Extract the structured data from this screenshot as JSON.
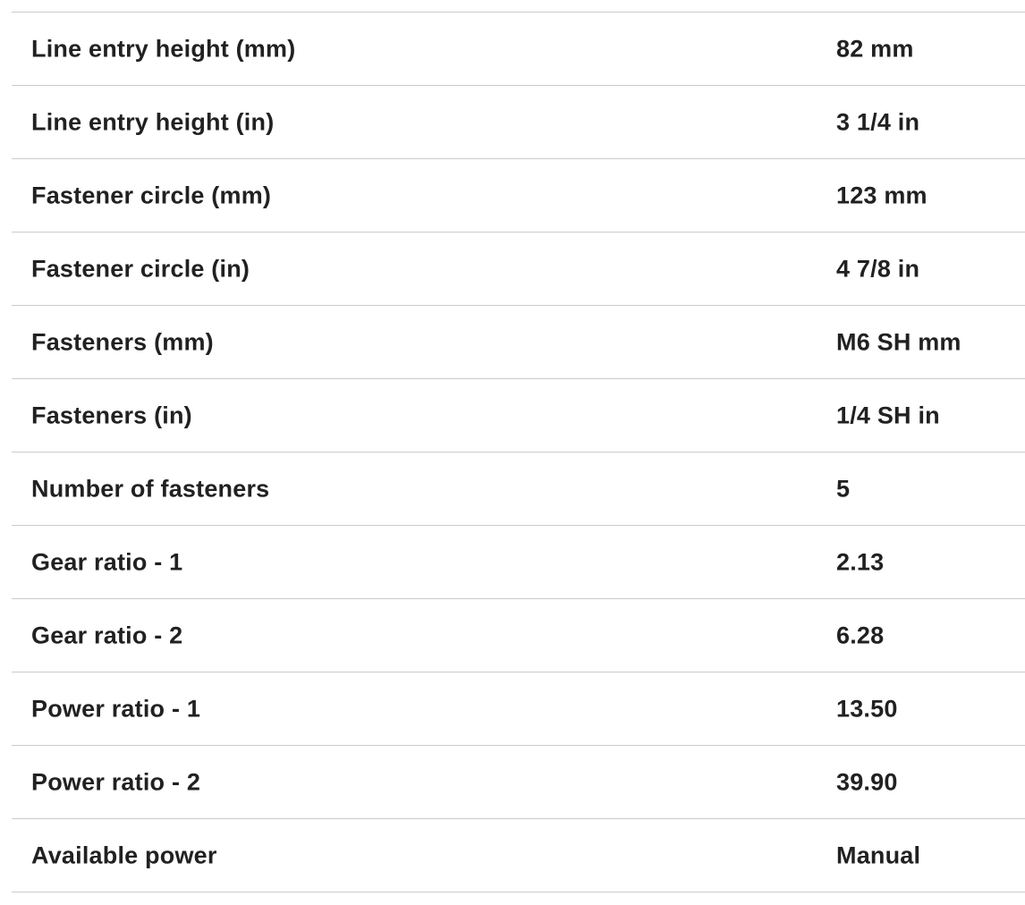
{
  "colors": {
    "background": "#ffffff",
    "text": "#212121",
    "divider": "#cbcbcb"
  },
  "table": {
    "rows": [
      {
        "label": "Line entry height (mm)",
        "value": "82 mm"
      },
      {
        "label": "Line entry height (in)",
        "value": "3 1/4 in"
      },
      {
        "label": "Fastener circle (mm)",
        "value": "123 mm"
      },
      {
        "label": "Fastener circle (in)",
        "value": "4 7/8 in"
      },
      {
        "label": "Fasteners (mm)",
        "value": "M6 SH mm"
      },
      {
        "label": "Fasteners (in)",
        "value": "1/4 SH in"
      },
      {
        "label": "Number of fasteners",
        "value": "5"
      },
      {
        "label": "Gear ratio - 1",
        "value": "2.13"
      },
      {
        "label": "Gear ratio - 2",
        "value": "6.28"
      },
      {
        "label": "Power ratio - 1",
        "value": "13.50"
      },
      {
        "label": "Power ratio - 2",
        "value": "39.90"
      },
      {
        "label": "Available power",
        "value": "Manual"
      }
    ]
  }
}
